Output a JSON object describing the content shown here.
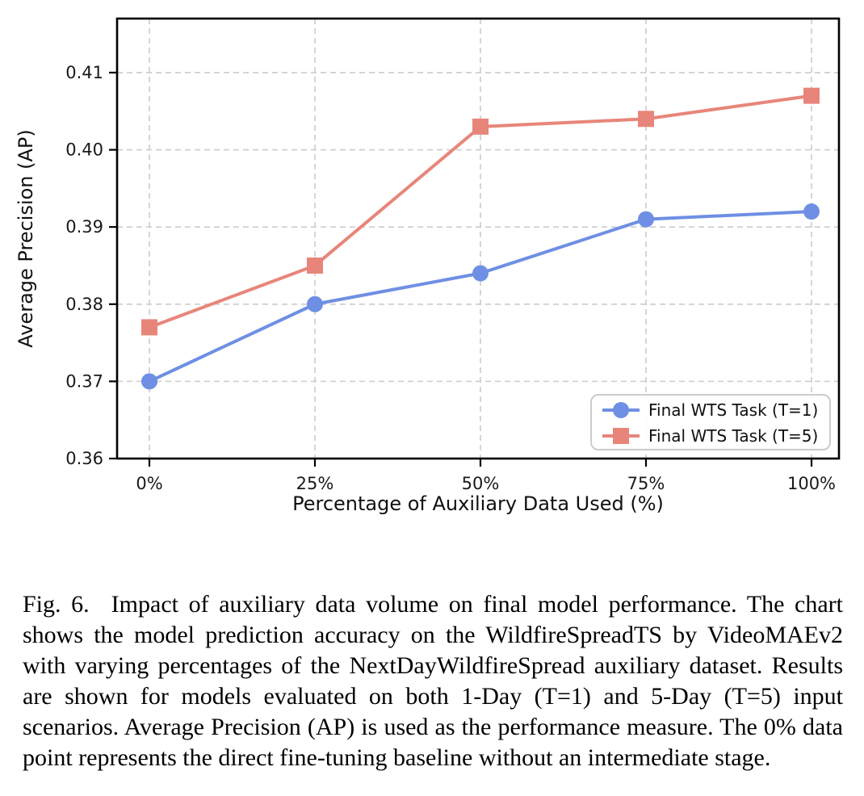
{
  "chart_data": {
    "type": "line",
    "x_categories": [
      "0%",
      "25%",
      "50%",
      "75%",
      "100%"
    ],
    "series": [
      {
        "name": "Final WTS Task (T=1)",
        "values": [
          0.37,
          0.38,
          0.384,
          0.391,
          0.392
        ],
        "color": "#6e8fe3",
        "marker": "circle"
      },
      {
        "name": "Final WTS Task (T=5)",
        "values": [
          0.377,
          0.385,
          0.403,
          0.404,
          0.407
        ],
        "color": "#e8857a",
        "marker": "square"
      }
    ],
    "xlabel": "Percentage of Auxiliary Data Used (%)",
    "ylabel": "Average Precision (AP)",
    "ylim": [
      0.36,
      0.417
    ],
    "yticks": [
      0.36,
      0.37,
      0.38,
      0.39,
      0.4,
      0.41
    ],
    "grid": true,
    "grid_style": "dashed",
    "grid_color": "#cccccc",
    "axis_color": "#000000",
    "legend_position": "lower right"
  },
  "figure": {
    "caption": {
      "label": "Fig. 6.",
      "text": "Impact of auxiliary data volume on final model performance. The chart shows the model prediction accuracy on the WildfireSpreadTS by VideoMAEv2 with varying percentages of the NextDayWildfireSpread auxiliary dataset. Results are shown for models evaluated on both 1-Day (T=1) and 5-Day (T=5) input scenarios. Average Precision (AP) is used as the performance measure. The 0% data point represents the direct fine-tuning baseline without an intermediate stage."
    }
  }
}
